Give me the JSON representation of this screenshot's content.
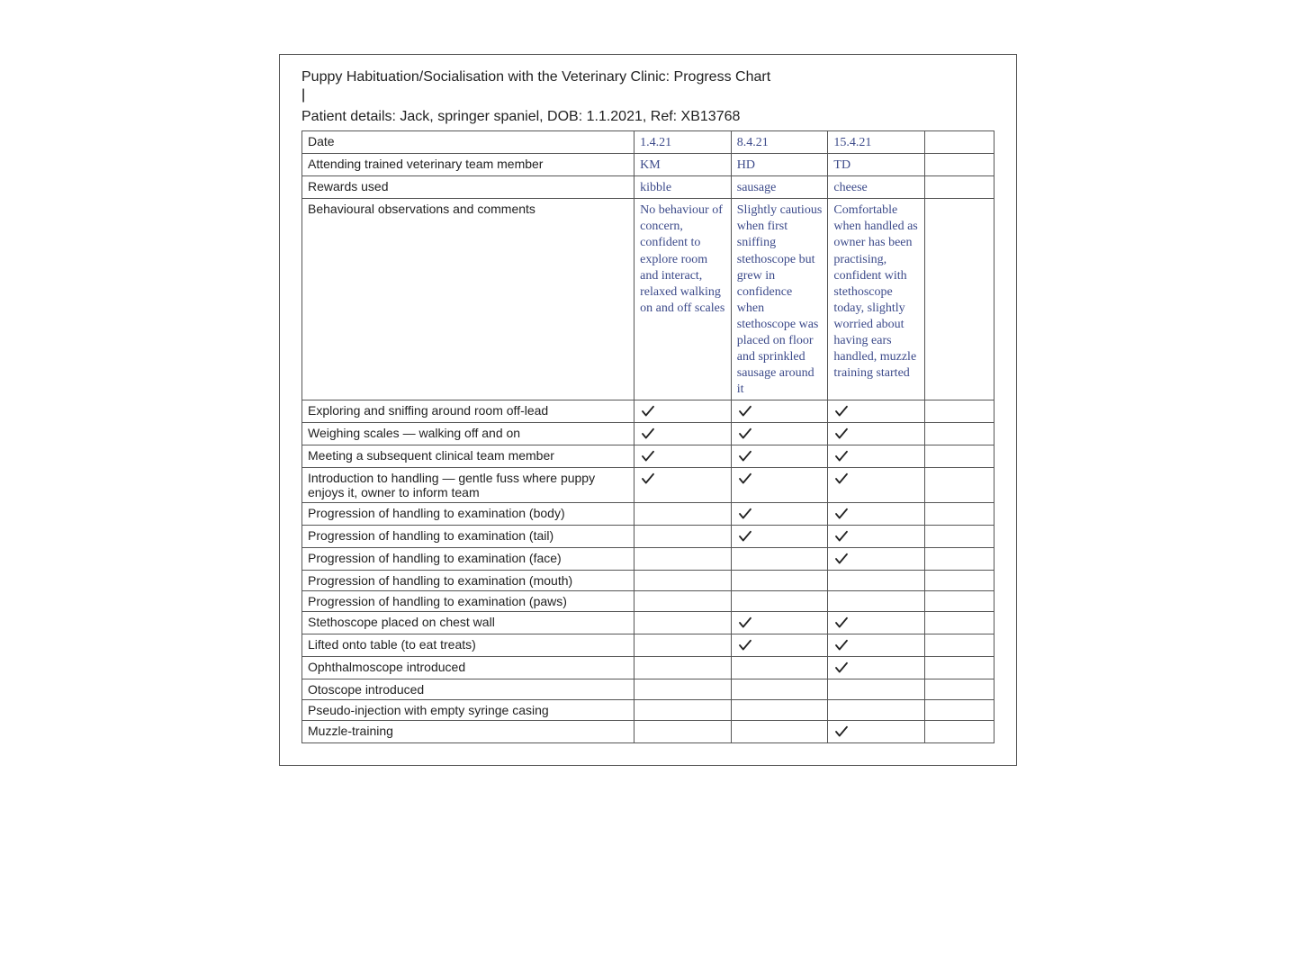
{
  "title": "Puppy Habituation/Socialisation with the Veterinary Clinic: Progress Chart",
  "patient": "Patient details: Jack, springer spaniel, DOB: 1.1.2021, Ref: XB13768",
  "colors": {
    "body_bg": "#ffffff",
    "text": "#222222",
    "border": "#555555",
    "hand": "#3c4a8a",
    "tick": "#222222"
  },
  "header_row": {
    "label": "Date",
    "d1": "1.4.21",
    "d2": "8.4.21",
    "d3": "15.4.21"
  },
  "rows": [
    {
      "label": "Attending trained veterinary team member",
      "d1_text": "KM",
      "d2_text": "HD",
      "d3_text": "TD"
    },
    {
      "label": "Rewards used",
      "d1_text": "kibble",
      "d2_text": "sausage",
      "d3_text": "cheese"
    },
    {
      "label": "Behavioural observations and comments",
      "d1_text": "No behaviour of concern, confident to explore room and interact, relaxed walking on and off scales",
      "d2_text": "Slightly cautious when first sniffing stethoscope but grew in confidence when stethoscope was placed on floor and sprinkled sausage around it",
      "d3_text": "Comfortable when handled as owner has been practising, confident with stethoscope today, slightly worried about having ears handled, muzzle training started"
    },
    {
      "label": "Exploring and sniffing around room off-lead",
      "d1_tick": true,
      "d2_tick": true,
      "d3_tick": true
    },
    {
      "label": "Weighing scales — walking off and on",
      "d1_tick": true,
      "d2_tick": true,
      "d3_tick": true
    },
    {
      "label": "Meeting a subsequent clinical team member",
      "d1_tick": true,
      "d2_tick": true,
      "d3_tick": true
    },
    {
      "label": "Introduction to handling — gentle fuss where puppy enjoys it, owner to inform team",
      "d1_tick": true,
      "d2_tick": true,
      "d3_tick": true
    },
    {
      "label": "Progression of handling to examination (body)",
      "d2_tick": true,
      "d3_tick": true
    },
    {
      "label": "Progression of handling to examination (tail)",
      "d2_tick": true,
      "d3_tick": true
    },
    {
      "label": "Progression of handling to examination (face)",
      "d3_tick": true
    },
    {
      "label": "Progression of handling to examination (mouth)"
    },
    {
      "label": "Progression of handling to examination (paws)"
    },
    {
      "label": "Stethoscope placed on chest wall",
      "d2_tick": true,
      "d3_tick": true
    },
    {
      "label": "Lifted onto table (to eat treats)",
      "d2_tick": true,
      "d3_tick": true
    },
    {
      "label": "Ophthalmoscope introduced",
      "d3_tick": true
    },
    {
      "label": "Otoscope introduced"
    },
    {
      "label": "Pseudo-injection with empty syringe casing"
    },
    {
      "label": "Muzzle-training",
      "d3_tick": true
    }
  ]
}
